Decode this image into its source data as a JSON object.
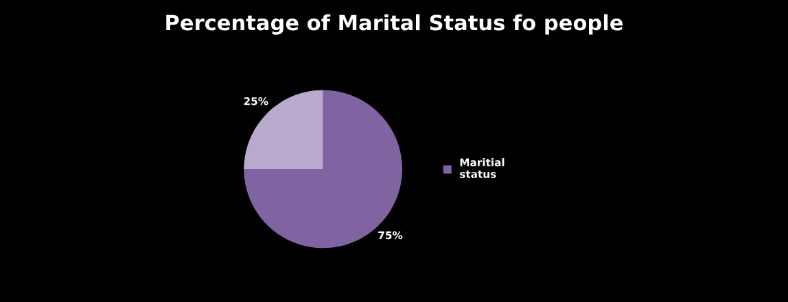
{
  "chart_data": {
    "type": "pie",
    "title": "Percentage of Marital Status fo people",
    "categories": [
      "Maritial status",
      null
    ],
    "values": [
      75,
      25
    ],
    "colors": [
      "#8064a2",
      "#b9a9cd"
    ],
    "value_labels": [
      "75%",
      "25%"
    ],
    "legend": "right"
  }
}
